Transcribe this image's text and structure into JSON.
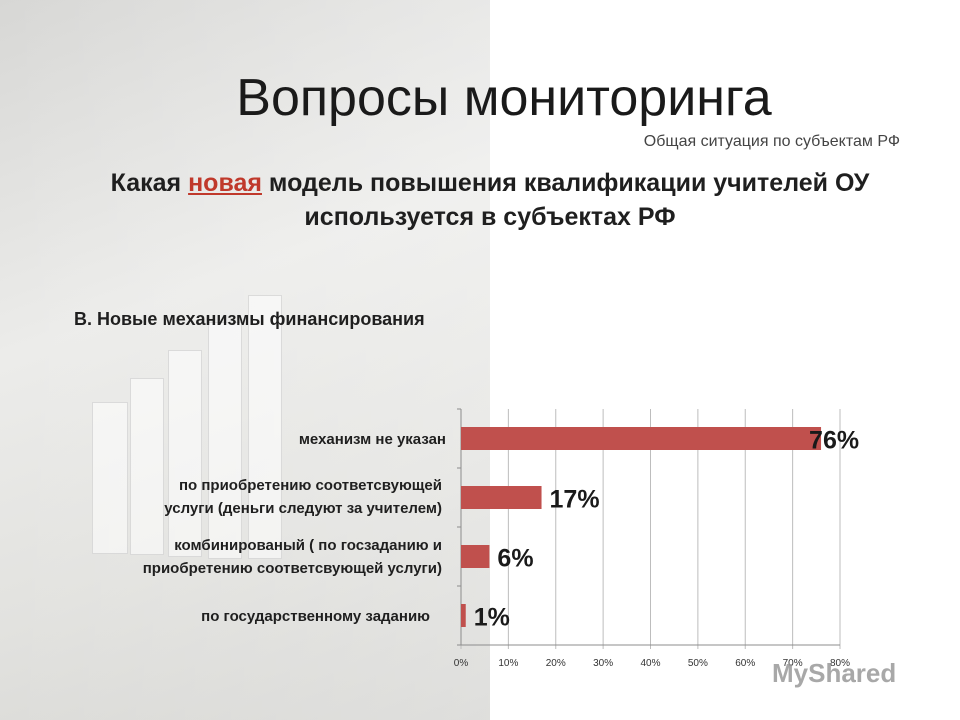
{
  "slide": {
    "title": "Вопросы мониторинга",
    "subtitle": "Общая ситуация по субъектам РФ",
    "question_part1": "Какая ",
    "question_accent": "новая",
    "question_part2": " модель повышения квалификации учителей ОУ",
    "question_line2": "используется в субъектах РФ",
    "section_title": "В. Новые механизмы финансирования",
    "watermark": "MyShared"
  },
  "chart_data": {
    "type": "bar",
    "orientation": "horizontal",
    "categories": [
      "механизм не указан",
      "по приобретению соответсвующей услуги (деньги следуют за учителем)",
      "комбинированый  ( по госзаданию и приобретению соответсвующей услуги)",
      "по государственному заданию"
    ],
    "category_lines": [
      [
        "механизм не указан"
      ],
      [
        "по приобретению соответсвующей",
        "услуги (деньги следуют за учителем)"
      ],
      [
        "комбинированый  ( по госзаданию и",
        "приобретению соответсвующей услуги)"
      ],
      [
        "по государственному заданию"
      ]
    ],
    "values": [
      76,
      17,
      6,
      1
    ],
    "data_labels": [
      "76%",
      "17%",
      "6%",
      "1%"
    ],
    "x_ticks": [
      "0%",
      "10%",
      "20%",
      "30%",
      "40%",
      "50%",
      "60%",
      "70%",
      "80%"
    ],
    "xlim": [
      0,
      80
    ],
    "grid": true,
    "bar_color": "#c0504d"
  }
}
